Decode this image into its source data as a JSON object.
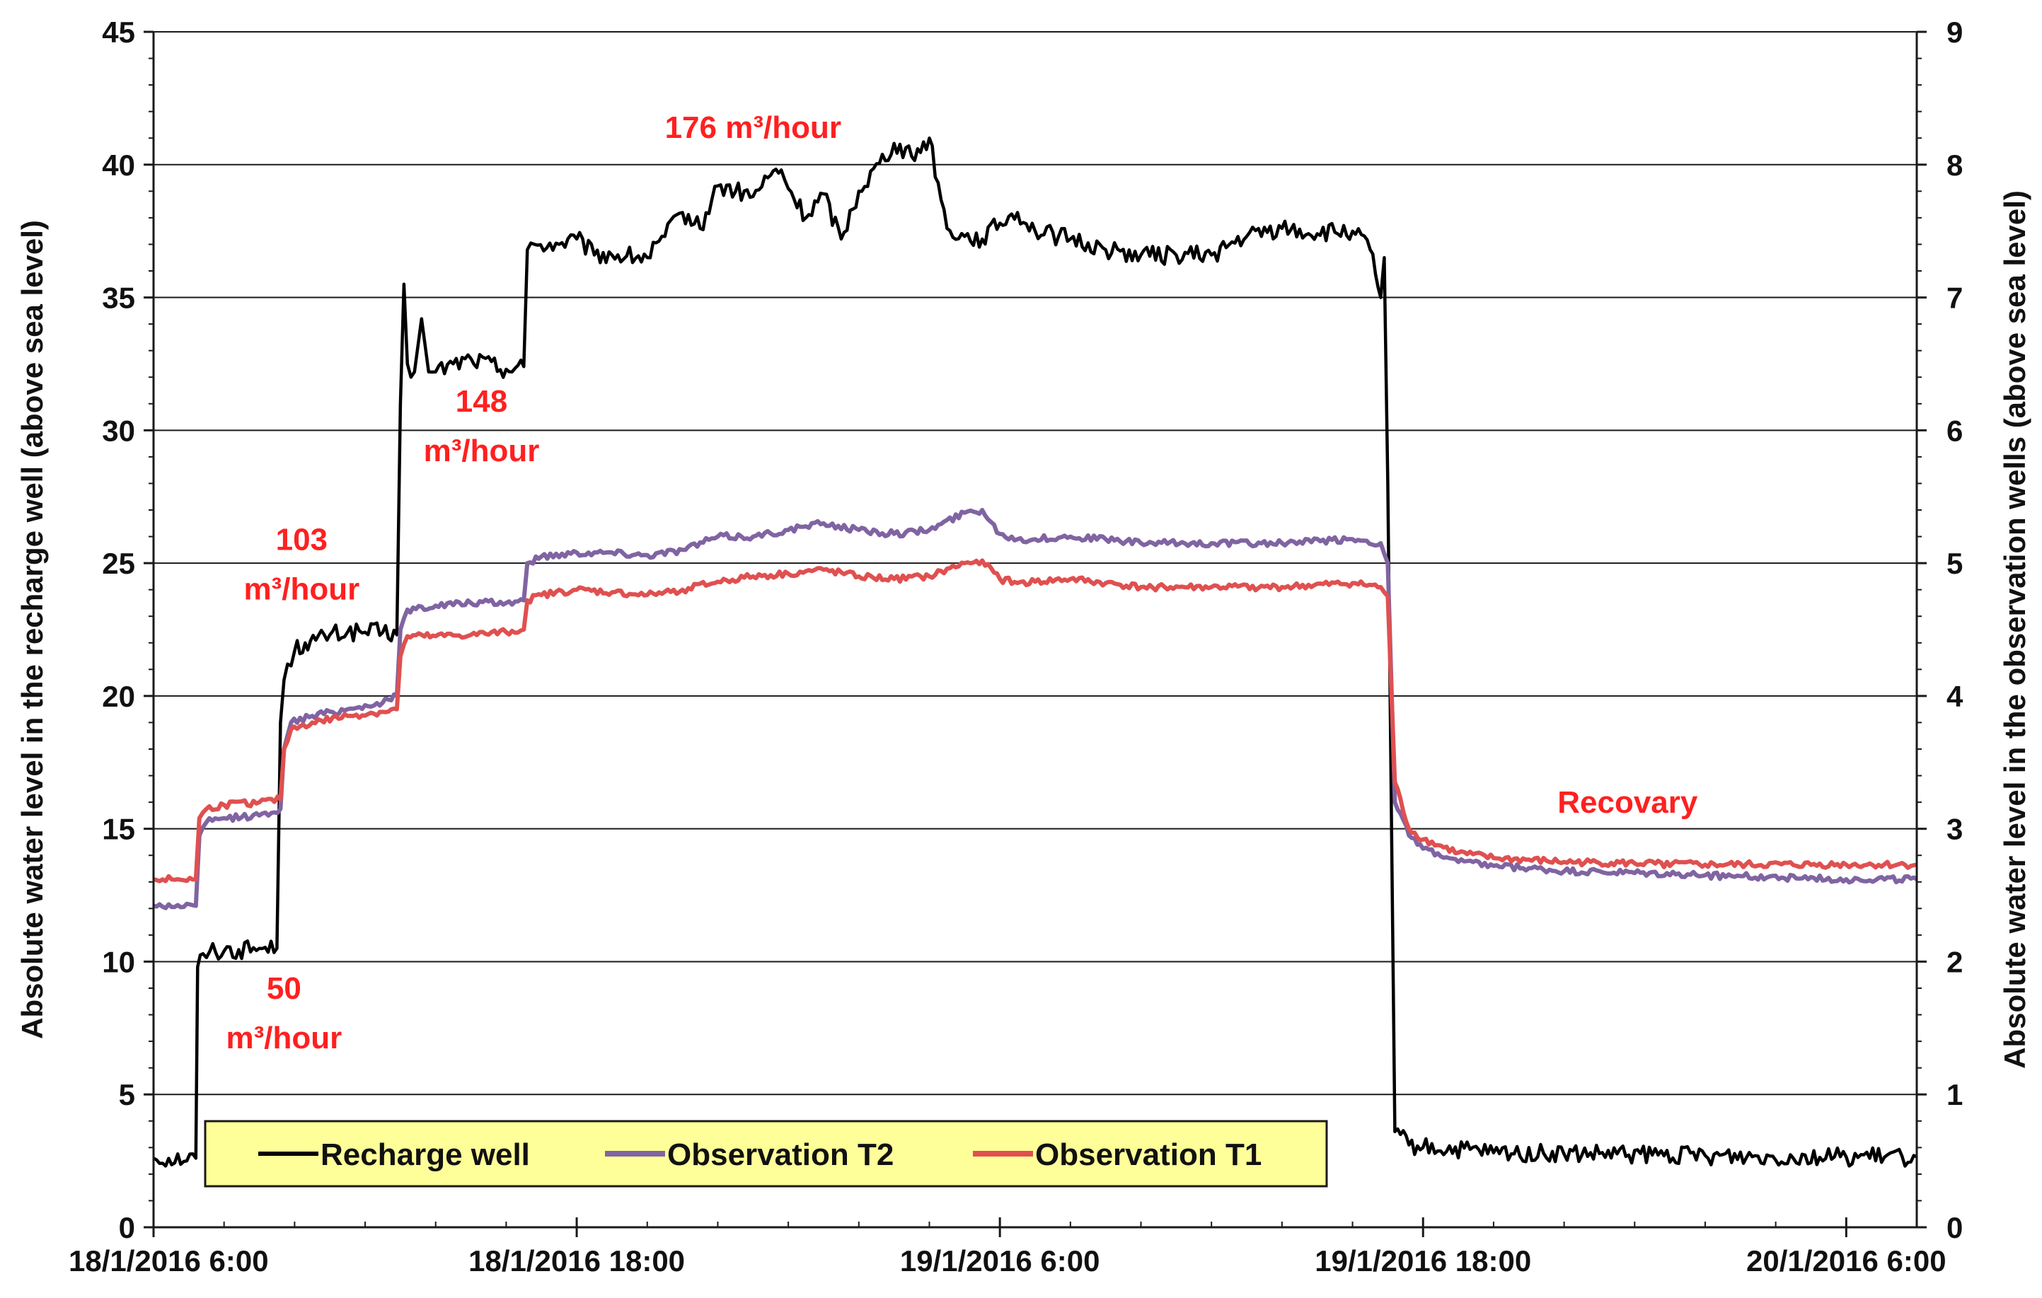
{
  "chart_data": {
    "type": "line",
    "xlabel": "",
    "ylabel": "Absolute water level in the recharge well (above sea level)",
    "y2label": "Absolute water level in the observation  wells (above sea level)",
    "x_tick_labels": [
      "18/1/2016 6:00",
      "18/1/2016 18:00",
      "19/1/2016 6:00",
      "19/1/2016 18:00",
      "20/1/2016 6:00"
    ],
    "x_ticks_hours": [
      0,
      12,
      24,
      36,
      48
    ],
    "xlim_hours": [
      0,
      50
    ],
    "ylim": [
      0,
      45
    ],
    "yticks": [
      0,
      5,
      10,
      15,
      20,
      25,
      30,
      35,
      40,
      45
    ],
    "y2lim": [
      0,
      9
    ],
    "y2ticks": [
      0,
      1,
      2,
      3,
      4,
      5,
      6,
      7,
      8,
      9
    ],
    "grid": "horizontal",
    "legend_position": "bottom-left",
    "series": [
      {
        "name": "Recharge well",
        "axis": "left",
        "color": "#000000",
        "hours": [
          0,
          1.2,
          1.25,
          1.4,
          1.6,
          2,
          3,
          3.5,
          3.6,
          3.7,
          3.8,
          4.0,
          4.3,
          4.6,
          5.0,
          5.5,
          6.0,
          6.5,
          6.9,
          7.0,
          7.1,
          7.2,
          7.3,
          7.4,
          7.6,
          7.8,
          8.0,
          8.5,
          9.0,
          10.0,
          10.5,
          10.6,
          10.8,
          11.5,
          12.0,
          12.5,
          13.0,
          14.0,
          14.5,
          15.0,
          15.5,
          16.0,
          17.0,
          17.5,
          17.8,
          18.0,
          18.5,
          19.0,
          19.5,
          20.0,
          21.0,
          21.5,
          22.0,
          22.5,
          23.0,
          23.5,
          24.0,
          24.5,
          25.0,
          26.0,
          27.0,
          28.0,
          29.0,
          30.0,
          31.0,
          32.0,
          33.0,
          34.0,
          34.5,
          34.8,
          34.9,
          35.0,
          35.2,
          35.6,
          36,
          38,
          40,
          44,
          48,
          50
        ],
        "values": [
          2.6,
          2.6,
          9.8,
          10.3,
          10.4,
          10.4,
          10.5,
          10.5,
          19.0,
          20.6,
          21.2,
          21.7,
          22.0,
          22.1,
          22.3,
          22.4,
          22.4,
          22.4,
          22.3,
          31.0,
          35.5,
          32.5,
          32.0,
          32.2,
          34.2,
          32.2,
          32.2,
          32.5,
          32.7,
          32.3,
          32.4,
          36.8,
          37.0,
          37.0,
          37.2,
          36.6,
          36.6,
          36.5,
          37.3,
          38.2,
          37.6,
          39.2,
          38.8,
          39.6,
          39.8,
          39.1,
          38.0,
          38.9,
          37.2,
          39.0,
          40.8,
          40.3,
          41.0,
          37.6,
          37.3,
          37.2,
          37.8,
          38.2,
          37.5,
          37.2,
          36.8,
          36.6,
          36.6,
          36.6,
          37.3,
          37.6,
          37.4,
          37.5,
          36.8,
          35.0,
          36.5,
          28.0,
          3.6,
          3.1,
          3.0,
          2.8,
          2.75,
          2.7,
          2.65,
          2.65
        ]
      },
      {
        "name": "Observation T2",
        "axis": "right",
        "color": "#8064a2",
        "hours": [
          0,
          1.2,
          1.3,
          1.5,
          2.0,
          3.0,
          3.6,
          3.7,
          3.9,
          4.5,
          5.5,
          6.5,
          6.9,
          7.0,
          7.2,
          8.0,
          9.0,
          10.0,
          10.5,
          10.6,
          11.0,
          12.0,
          13.0,
          14.0,
          15.0,
          16.0,
          17.0,
          18.0,
          19.0,
          20.0,
          21.0,
          22.0,
          23.0,
          23.5,
          24.0,
          24.5,
          25.0,
          26.0,
          27.0,
          28.0,
          30.0,
          32.0,
          34.0,
          34.8,
          35.0,
          35.2,
          35.6,
          36,
          37,
          38,
          40,
          44,
          48,
          50
        ],
        "values": [
          2.42,
          2.42,
          2.95,
          3.05,
          3.08,
          3.1,
          3.15,
          3.6,
          3.8,
          3.85,
          3.9,
          3.95,
          4.0,
          4.5,
          4.65,
          4.68,
          4.7,
          4.7,
          4.72,
          5.0,
          5.05,
          5.08,
          5.08,
          5.06,
          5.1,
          5.2,
          5.2,
          5.25,
          5.3,
          5.25,
          5.22,
          5.25,
          5.38,
          5.4,
          5.22,
          5.18,
          5.18,
          5.2,
          5.18,
          5.15,
          5.15,
          5.15,
          5.18,
          5.15,
          5.0,
          3.2,
          2.95,
          2.85,
          2.75,
          2.72,
          2.68,
          2.65,
          2.62,
          2.62
        ]
      },
      {
        "name": "Observation T1",
        "axis": "right",
        "color": "#e05050",
        "hours": [
          0,
          1.2,
          1.3,
          1.5,
          2.0,
          3.0,
          3.6,
          3.7,
          3.9,
          4.5,
          5.5,
          6.5,
          6.9,
          7.0,
          7.2,
          8.0,
          9.0,
          10.0,
          10.5,
          10.6,
          11.0,
          12.0,
          13.0,
          14.0,
          15.0,
          16.0,
          17.0,
          18.0,
          19.0,
          20.0,
          21.0,
          22.0,
          23.0,
          23.5,
          24.0,
          24.5,
          25.0,
          26.0,
          27.0,
          28.0,
          30.0,
          32.0,
          34.0,
          34.8,
          35.0,
          35.2,
          35.6,
          36,
          37,
          38,
          40,
          44,
          48,
          50
        ],
        "values": [
          2.62,
          2.62,
          3.08,
          3.15,
          3.18,
          3.2,
          3.22,
          3.6,
          3.75,
          3.8,
          3.85,
          3.88,
          3.9,
          4.3,
          4.45,
          4.45,
          4.46,
          4.48,
          4.5,
          4.72,
          4.76,
          4.8,
          4.78,
          4.76,
          4.8,
          4.86,
          4.9,
          4.92,
          4.95,
          4.9,
          4.88,
          4.9,
          5.0,
          5.02,
          4.88,
          4.85,
          4.86,
          4.88,
          4.85,
          4.82,
          4.82,
          4.82,
          4.85,
          4.82,
          4.75,
          3.35,
          3.0,
          2.92,
          2.82,
          2.78,
          2.75,
          2.73,
          2.73,
          2.73
        ]
      }
    ],
    "annotations": [
      {
        "lines": [
          "50",
          "m³/hour"
        ],
        "hour": 3.7,
        "y": 8.6
      },
      {
        "lines": [
          "103",
          "m³/hour"
        ],
        "hour": 4.2,
        "y": 25.5
      },
      {
        "lines": [
          "148",
          "m³/hour"
        ],
        "hour": 9.3,
        "y": 30.7
      },
      {
        "lines": [
          "176 m³/hour"
        ],
        "hour": 17.0,
        "y": 41.0
      },
      {
        "lines": [
          "Recovary"
        ],
        "hour": 41.8,
        "y": 15.6
      }
    ]
  }
}
